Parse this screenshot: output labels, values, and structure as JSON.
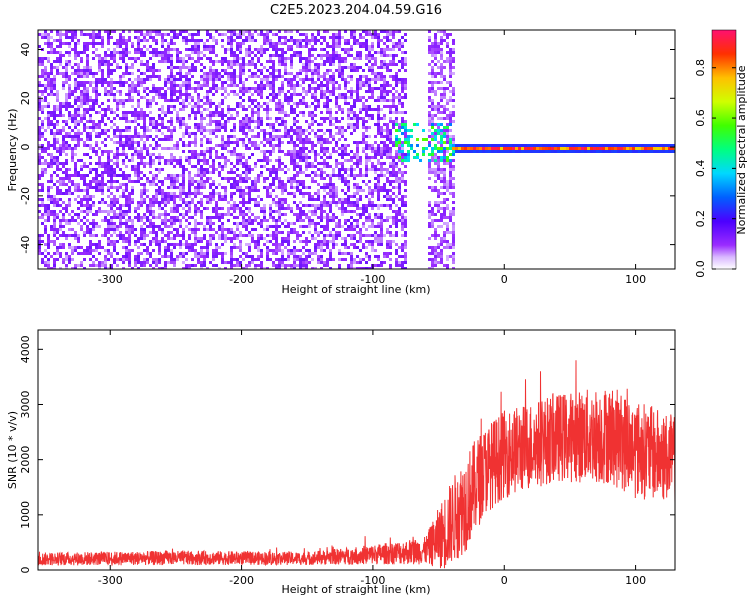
{
  "title": "C2E5.2023.204.04.59.G16",
  "chart_data": [
    {
      "type": "heatmap",
      "xlabel": "Height of straight line (km)",
      "ylabel": "Frequency (Hz)",
      "xlim": [
        -355,
        130
      ],
      "ylim": [
        -50,
        48
      ],
      "x_ticks": [
        -300,
        -200,
        -100,
        0,
        100
      ],
      "y_ticks": [
        -40,
        -20,
        0,
        20,
        40
      ],
      "colorbar": {
        "label": "Normalized spectral amplitude",
        "range": [
          0,
          0.95
        ],
        "ticks": [
          0.0,
          0.2,
          0.4,
          0.6,
          0.8
        ],
        "colormap": "rainbow-magenta"
      },
      "regions": [
        {
          "x": [
            -355,
            -75
          ],
          "y": [
            -50,
            48
          ],
          "amplitude": [
            0.05,
            0.15
          ],
          "pattern": "broadband noise"
        },
        {
          "x": [
            -60,
            -38
          ],
          "y": [
            -50,
            48
          ],
          "amplitude": [
            0.05,
            0.12
          ],
          "pattern": "broadband noise"
        },
        {
          "x": [
            -85,
            -38
          ],
          "y": [
            -5,
            10
          ],
          "amplitude": [
            0.3,
            0.6
          ],
          "pattern": "scattered peaks"
        },
        {
          "x": [
            -40,
            130
          ],
          "y": [
            -1.5,
            1.5
          ],
          "amplitude": [
            0.4,
            0.95
          ],
          "pattern": "narrow carrier line at 0 Hz"
        }
      ]
    },
    {
      "type": "line",
      "xlabel": "Height of straight line (km)",
      "ylabel": "SNR (10 * v/v)",
      "xlim": [
        -355,
        130
      ],
      "ylim": [
        0,
        4350
      ],
      "x_ticks": [
        -300,
        -200,
        -100,
        0,
        100
      ],
      "y_ticks": [
        0,
        1000,
        2000,
        3000,
        4000
      ],
      "color": "#f03232",
      "envelope": [
        {
          "x": -350,
          "mean": 200,
          "spread": 120
        },
        {
          "x": -250,
          "mean": 220,
          "spread": 130
        },
        {
          "x": -150,
          "mean": 210,
          "spread": 120
        },
        {
          "x": -100,
          "mean": 280,
          "spread": 180
        },
        {
          "x": -60,
          "mean": 350,
          "spread": 250
        },
        {
          "x": -45,
          "mean": 700,
          "spread": 700
        },
        {
          "x": -30,
          "mean": 1200,
          "spread": 900
        },
        {
          "x": -15,
          "mean": 1800,
          "spread": 800
        },
        {
          "x": 0,
          "mean": 2100,
          "spread": 800
        },
        {
          "x": 40,
          "mean": 2400,
          "spread": 800
        },
        {
          "x": 80,
          "mean": 2450,
          "spread": 900
        },
        {
          "x": 100,
          "mean": 2200,
          "spread": 900
        },
        {
          "x": 130,
          "mean": 2000,
          "spread": 800
        }
      ]
    }
  ]
}
